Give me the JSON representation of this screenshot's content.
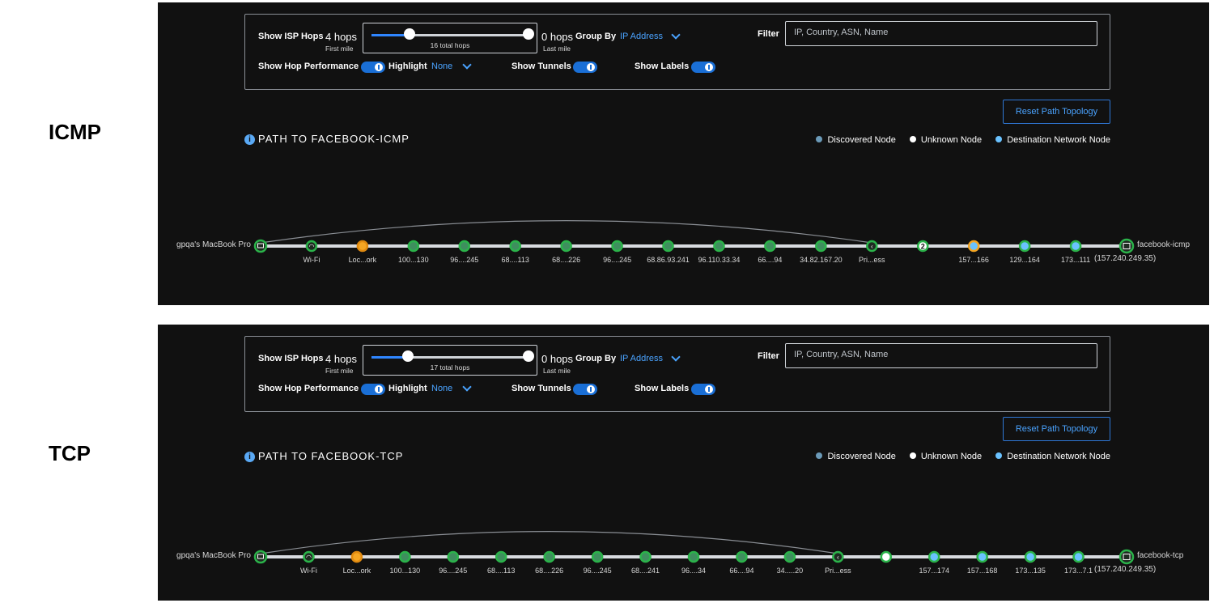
{
  "labels": {
    "icmp": "ICMP",
    "tcp": "TCP"
  },
  "colors": {
    "panel": "#111111",
    "accent": "#4aa3ff",
    "discovered": "#6b9ab8",
    "unknown": "#ffffff",
    "destination": "#6ac2ff",
    "node_green": "#2bb34a",
    "node_orange": "#f5a623"
  },
  "icmp": {
    "controls": {
      "show_isp_hops": "Show ISP Hops",
      "first_hops": "4 hops",
      "first_mile": "First mile",
      "total_hops": "16 total hops",
      "last_hops": "0 hops",
      "last_mile": "Last mile",
      "group_by": "Group By",
      "group_by_value": "IP Address",
      "filter": "Filter",
      "filter_placeholder": "IP, Country, ASN, Name",
      "show_hop_performance": "Show Hop Performance",
      "highlight": "Highlight",
      "highlight_value": "None",
      "show_tunnels": "Show Tunnels",
      "show_labels": "Show Labels",
      "slider_first_fraction": 0.24
    },
    "reset_button": "Reset Path Topology",
    "path_title": "PATH TO FACEBOOK-ICMP",
    "legend": [
      "Discovered Node",
      "Unknown Node",
      "Destination Network Node"
    ],
    "source": "gpqa's MacBook Pro",
    "destination": "facebook-icmp",
    "destination_ip": "(157.240.249.35)",
    "nodes": [
      {
        "label": "Wi-Fi",
        "kind": "wifi"
      },
      {
        "label": "Loc...ork",
        "kind": "local"
      },
      {
        "label": "100...130",
        "kind": "disc"
      },
      {
        "label": "96....245",
        "kind": "disc"
      },
      {
        "label": "68....113",
        "kind": "disc"
      },
      {
        "label": "68....226",
        "kind": "disc"
      },
      {
        "label": "96....245",
        "kind": "disc"
      },
      {
        "label": "68.86.93.241",
        "kind": "disc"
      },
      {
        "label": "96.110.33.34",
        "kind": "disc"
      },
      {
        "label": "66....94",
        "kind": "disc"
      },
      {
        "label": "34.82.167.20",
        "kind": "disc"
      },
      {
        "label": "Pri...ess",
        "kind": "private"
      },
      {
        "label": "",
        "kind": "count",
        "count": "2"
      },
      {
        "label": "157...166",
        "kind": "destorange"
      },
      {
        "label": "129...164",
        "kind": "dest"
      },
      {
        "label": "173...111",
        "kind": "dest"
      }
    ]
  },
  "tcp": {
    "controls": {
      "show_isp_hops": "Show ISP Hops",
      "first_hops": "4 hops",
      "first_mile": "First mile",
      "total_hops": "17 total hops",
      "last_hops": "0 hops",
      "last_mile": "Last mile",
      "group_by": "Group By",
      "group_by_value": "IP Address",
      "filter": "Filter",
      "filter_placeholder": "IP, Country, ASN, Name",
      "show_hop_performance": "Show Hop Performance",
      "highlight": "Highlight",
      "highlight_value": "None",
      "show_tunnels": "Show Tunnels",
      "show_labels": "Show Labels",
      "slider_first_fraction": 0.23
    },
    "reset_button": "Reset Path Topology",
    "path_title": "PATH TO FACEBOOK-TCP",
    "legend": [
      "Discovered Node",
      "Unknown Node",
      "Destination Network Node"
    ],
    "source": "gpqa's MacBook Pro",
    "destination": "facebook-tcp",
    "destination_ip": "(157.240.249.35)",
    "nodes": [
      {
        "label": "Wi-Fi",
        "kind": "wifi"
      },
      {
        "label": "Loc...ork",
        "kind": "local"
      },
      {
        "label": "100...130",
        "kind": "disc"
      },
      {
        "label": "96....245",
        "kind": "disc"
      },
      {
        "label": "68....113",
        "kind": "disc"
      },
      {
        "label": "68....226",
        "kind": "disc"
      },
      {
        "label": "96....245",
        "kind": "disc"
      },
      {
        "label": "68....241",
        "kind": "disc"
      },
      {
        "label": "96....34",
        "kind": "disc"
      },
      {
        "label": "66....94",
        "kind": "disc"
      },
      {
        "label": "34.....20",
        "kind": "disc"
      },
      {
        "label": "Pri...ess",
        "kind": "private"
      },
      {
        "label": "",
        "kind": "unknown"
      },
      {
        "label": "157...174",
        "kind": "dest"
      },
      {
        "label": "157...168",
        "kind": "dest"
      },
      {
        "label": "173...135",
        "kind": "dest"
      },
      {
        "label": "173...7.1",
        "kind": "dest"
      }
    ]
  }
}
